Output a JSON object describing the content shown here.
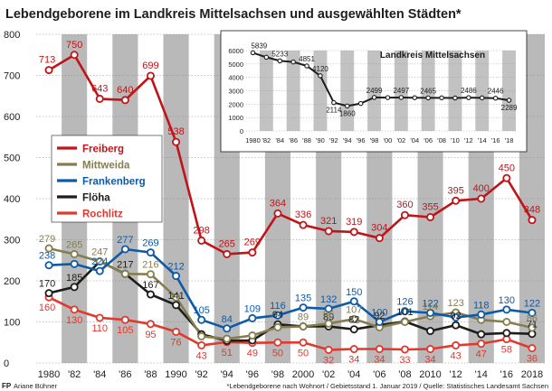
{
  "title": "Lebendgeborene im Landkreis Mittelsachsen und ausgewählten Städten*",
  "footer": {
    "logo": "FP",
    "author": "Ariane Bühner",
    "note": "*Lebendgeborene nach Wohnort / Gebietsstand 1. Januar 2019 / Quelle: Statistisches Landesamt Sachsen"
  },
  "colors": {
    "band": "#b9b9b9",
    "Freiberg": "#c01418",
    "Mittweida": "#857d4e",
    "Frankenberg": "#0c5aa8",
    "Flöha": "#1d1d1b",
    "Rochlitz": "#e0392e",
    "inset": "#1d1d1b"
  },
  "chart_data": [
    {
      "type": "line",
      "x": [
        "1980",
        "'82",
        "'84",
        "'86",
        "'88",
        "1990",
        "'92",
        "'94",
        "'96",
        "'98",
        "2000",
        "'02",
        "'04",
        "'06",
        "'08",
        "2010",
        "'12",
        "'14",
        "'16",
        "2018"
      ],
      "ylim": [
        0,
        800
      ],
      "yticks": [
        0,
        100,
        200,
        300,
        400,
        500,
        600,
        700,
        800
      ],
      "grid": true,
      "legend": "left-middle",
      "series": [
        {
          "name": "Freiberg",
          "values": [
            713,
            750,
            643,
            640,
            699,
            538,
            298,
            265,
            269,
            364,
            336,
            321,
            319,
            304,
            360,
            355,
            395,
            400,
            450,
            348
          ]
        },
        {
          "name": "Mittweida",
          "values": [
            279,
            265,
            247,
            217,
            216,
            160,
            65,
            59,
            67,
            87,
            89,
            96,
            107,
            87,
            100,
            114,
            123,
            105,
            100,
            86
          ]
        },
        {
          "name": "Frankenberg",
          "values": [
            238,
            241,
            224,
            277,
            269,
            212,
            105,
            84,
            109,
            116,
            135,
            132,
            150,
            100,
            126,
            122,
            111,
            118,
            130,
            122
          ]
        },
        {
          "name": "Flöha",
          "values": [
            170,
            185,
            247,
            217,
            167,
            141,
            70,
            54,
            55,
            94,
            89,
            89,
            82,
            92,
            101,
            78,
            92,
            70,
            73,
            71
          ]
        },
        {
          "name": "Rochlitz",
          "values": [
            160,
            130,
            110,
            105,
            95,
            76,
            43,
            51,
            49,
            50,
            50,
            32,
            34,
            34,
            33,
            34,
            43,
            47,
            58,
            36
          ]
        }
      ],
      "labels": {
        "Freiberg": [
          713,
          750,
          643,
          640,
          699,
          538,
          298,
          265,
          269,
          364,
          336,
          321,
          319,
          304,
          360,
          355,
          395,
          400,
          450,
          348
        ],
        "Mittweida": [
          279,
          265,
          247,
          null,
          216,
          null,
          null,
          null,
          null,
          null,
          89,
          96,
          107,
          null,
          null,
          114,
          123,
          null,
          null,
          86
        ],
        "Frankenberg": [
          238,
          null,
          224,
          277,
          269,
          212,
          105,
          84,
          109,
          116,
          135,
          132,
          150,
          100,
          126,
          122,
          null,
          118,
          130,
          122
        ],
        "Flöha": [
          170,
          185,
          null,
          217,
          167,
          141,
          null,
          null,
          null,
          94,
          null,
          89,
          82,
          92,
          101,
          null,
          92,
          null,
          null,
          71
        ],
        "Rochlitz": [
          160,
          130,
          110,
          105,
          95,
          76,
          43,
          51,
          49,
          50,
          50,
          32,
          34,
          34,
          33,
          34,
          43,
          47,
          58,
          36
        ]
      }
    },
    {
      "type": "line",
      "title": "Landkreis Mittelsachsen",
      "x": [
        "1980",
        "'82",
        "'84",
        "'86",
        "'88",
        "'90",
        "'92",
        "'94",
        "'96",
        "'98",
        "'00",
        "'02",
        "'04",
        "'06",
        "'08",
        "'10",
        "'12",
        "'14",
        "'16",
        "'18"
      ],
      "ylim": [
        0,
        6000
      ],
      "yticks": [
        0,
        1000,
        2000,
        3000,
        4000,
        5000,
        6000
      ],
      "series": [
        {
          "name": "Landkreis Mittelsachsen",
          "values": [
            5839,
            5500,
            5233,
            5150,
            4851,
            4120,
            2114,
            1860,
            2050,
            2499,
            2490,
            2497,
            2480,
            2465,
            2470,
            2460,
            2486,
            2470,
            2446,
            2289
          ]
        }
      ],
      "labels": [
        5839,
        null,
        5233,
        null,
        4851,
        4120,
        2114,
        1860,
        null,
        2499,
        null,
        2497,
        null,
        2465,
        null,
        null,
        2486,
        null,
        2446,
        2289
      ]
    }
  ]
}
